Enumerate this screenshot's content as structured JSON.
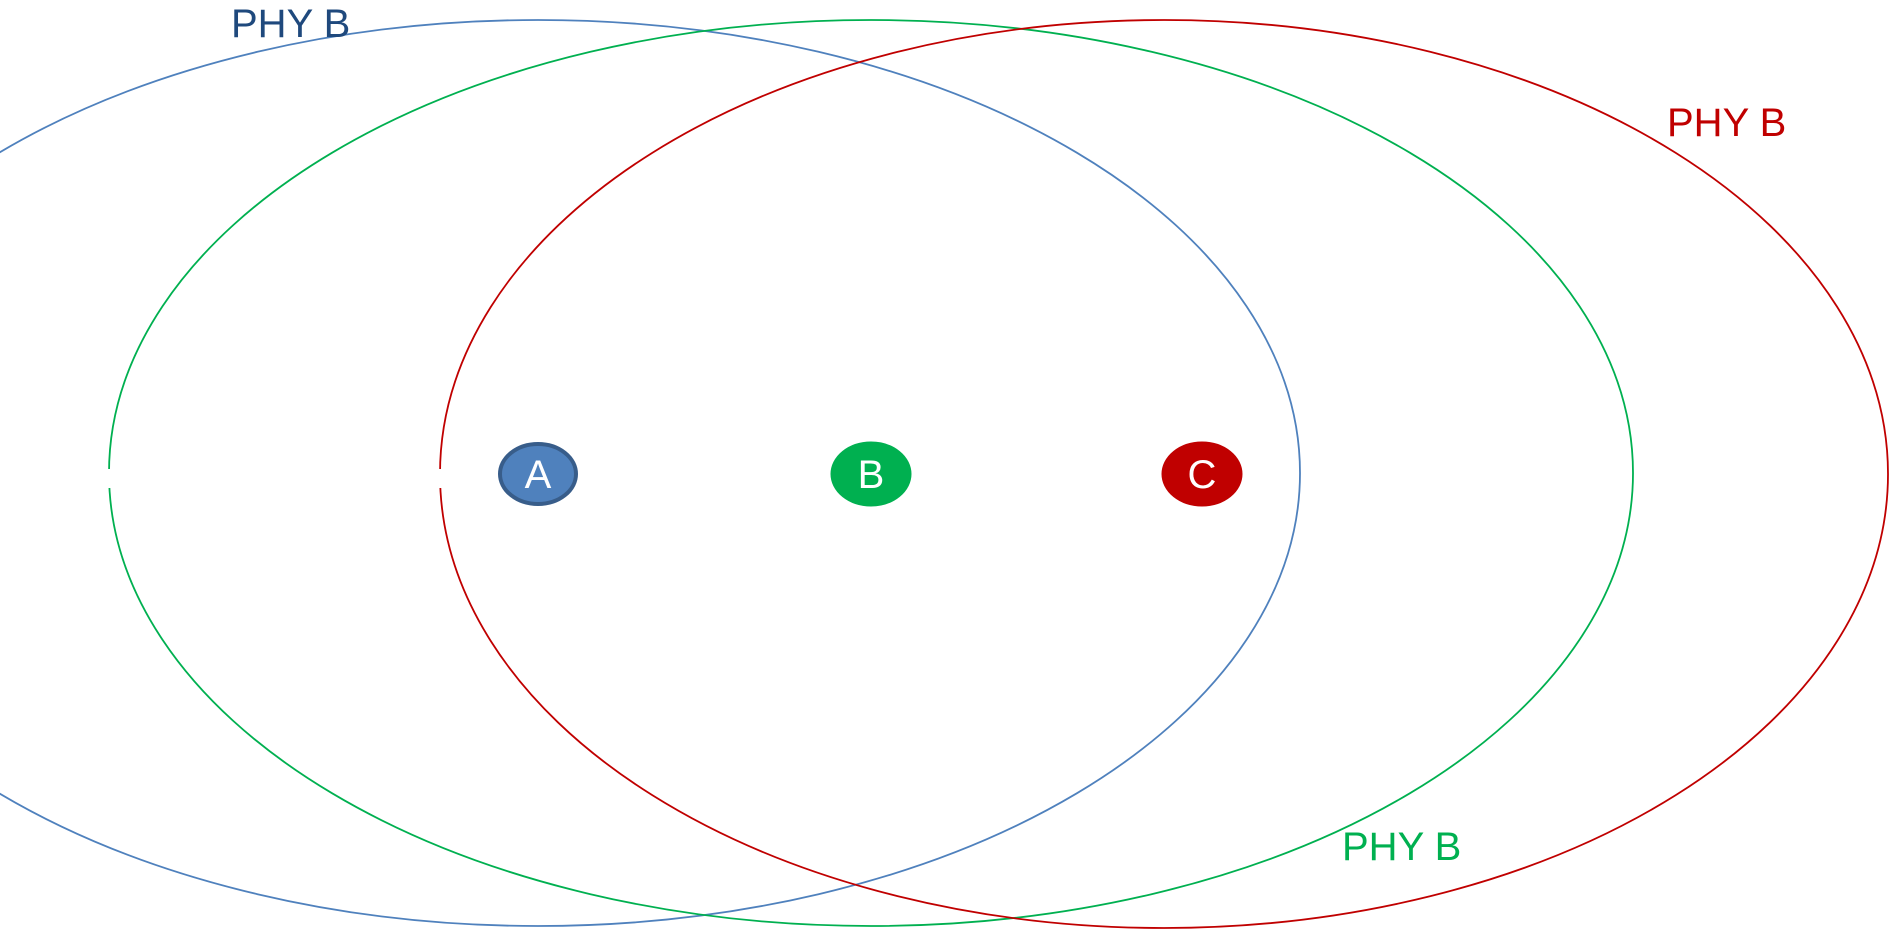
{
  "diagram": {
    "ranges": [
      {
        "id": "a",
        "label": "PHY B",
        "color": "#4f81bd",
        "label_color": "#1f497d"
      },
      {
        "id": "b",
        "label": "PHY B",
        "color": "#00b050",
        "label_color": "#00b050"
      },
      {
        "id": "c",
        "label": "PHY B",
        "color": "#c00000",
        "label_color": "#c00000"
      }
    ],
    "nodes": [
      {
        "id": "a",
        "label": "A",
        "fill": "#4f81bd",
        "stroke": "#385d8a",
        "text_color": "#ffffff"
      },
      {
        "id": "b",
        "label": "B",
        "fill": "#00b050",
        "stroke": "#00b050",
        "text_color": "#ffffff"
      },
      {
        "id": "c",
        "label": "C",
        "fill": "#c00000",
        "stroke": "#c00000",
        "text_color": "#ffffff"
      }
    ]
  }
}
